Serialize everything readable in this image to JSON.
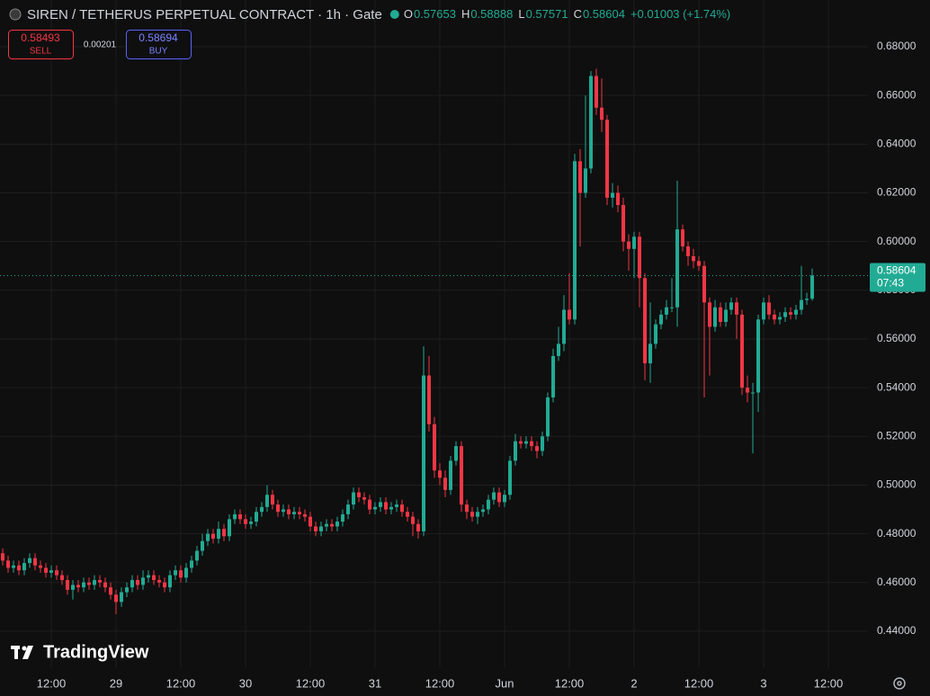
{
  "header": {
    "symbol": "SIREN / TETHERUS PERPETUAL CONTRACT · 1h · Gate",
    "ohlc": [
      {
        "key": "O",
        "value": "0.57653"
      },
      {
        "key": "H",
        "value": "0.58888"
      },
      {
        "key": "L",
        "value": "0.57571"
      },
      {
        "key": "C",
        "value": "0.58604"
      }
    ],
    "change": "+0.01003 (+1.74%)"
  },
  "trade": {
    "sell_price": "0.58493",
    "sell": "SELL",
    "spread": "0.00201",
    "buy_price": "0.58694",
    "buy": "BUY"
  },
  "price_label": {
    "value": "0.58604",
    "countdown": "07:43"
  },
  "brand": "TradingView",
  "chart_data": {
    "type": "candlestick",
    "up_color": "#22ab94",
    "down_color": "#f23645",
    "grid": true,
    "open": [
      0.472,
      0.469,
      0.466,
      0.467,
      0.465,
      0.468,
      0.47,
      0.467,
      0.466,
      0.464,
      0.465,
      0.463,
      0.461,
      0.457,
      0.459,
      0.458,
      0.46,
      0.459,
      0.461,
      0.46,
      0.458,
      0.455,
      0.452,
      0.456,
      0.458,
      0.461,
      0.459,
      0.462,
      0.463,
      0.461,
      0.46,
      0.458,
      0.463,
      0.465,
      0.462,
      0.466,
      0.469,
      0.473,
      0.477,
      0.48,
      0.478,
      0.482,
      0.479,
      0.486,
      0.488,
      0.486,
      0.484,
      0.485,
      0.489,
      0.491,
      0.496,
      0.492,
      0.489,
      0.49,
      0.488,
      0.489,
      0.488,
      0.487,
      0.483,
      0.481,
      0.483,
      0.484,
      0.483,
      0.485,
      0.488,
      0.492,
      0.497,
      0.495,
      0.494,
      0.49,
      0.491,
      0.493,
      0.49,
      0.491,
      0.492,
      0.489,
      0.487,
      0.484,
      0.481,
      0.545,
      0.525,
      0.506,
      0.503,
      0.498,
      0.51,
      0.516,
      0.492,
      0.489,
      0.487,
      0.489,
      0.49,
      0.494,
      0.497,
      0.493,
      0.496,
      0.51,
      0.518,
      0.517,
      0.518,
      0.516,
      0.514,
      0.52,
      0.536,
      0.553,
      0.558,
      0.572,
      0.568,
      0.633,
      0.62,
      0.63,
      0.668,
      0.655,
      0.65,
      0.618,
      0.62,
      0.615,
      0.6,
      0.597,
      0.602,
      0.585,
      0.55,
      0.558,
      0.566,
      0.57,
      0.573,
      0.573,
      0.605,
      0.598,
      0.594,
      0.592,
      0.59,
      0.575,
      0.565,
      0.573,
      0.567,
      0.572,
      0.575,
      0.57,
      0.54,
      0.538,
      0.538,
      0.568,
      0.575,
      0.57,
      0.568,
      0.569,
      0.571,
      0.57,
      0.572,
      0.576,
      0.57653
    ],
    "high": [
      0.474,
      0.471,
      0.469,
      0.469,
      0.47,
      0.472,
      0.472,
      0.469,
      0.468,
      0.467,
      0.467,
      0.465,
      0.463,
      0.461,
      0.461,
      0.462,
      0.462,
      0.463,
      0.463,
      0.462,
      0.46,
      0.457,
      0.458,
      0.46,
      0.463,
      0.463,
      0.465,
      0.465,
      0.465,
      0.463,
      0.462,
      0.465,
      0.467,
      0.467,
      0.468,
      0.471,
      0.475,
      0.48,
      0.482,
      0.482,
      0.485,
      0.484,
      0.488,
      0.49,
      0.49,
      0.488,
      0.487,
      0.491,
      0.493,
      0.5,
      0.498,
      0.494,
      0.492,
      0.492,
      0.491,
      0.491,
      0.49,
      0.489,
      0.485,
      0.485,
      0.486,
      0.486,
      0.487,
      0.49,
      0.494,
      0.499,
      0.499,
      0.497,
      0.496,
      0.493,
      0.495,
      0.495,
      0.493,
      0.494,
      0.494,
      0.491,
      0.489,
      0.486,
      0.557,
      0.553,
      0.528,
      0.509,
      0.506,
      0.512,
      0.518,
      0.518,
      0.494,
      0.491,
      0.491,
      0.492,
      0.496,
      0.499,
      0.499,
      0.498,
      0.512,
      0.521,
      0.52,
      0.52,
      0.52,
      0.518,
      0.522,
      0.538,
      0.556,
      0.565,
      0.578,
      0.587,
      0.636,
      0.638,
      0.66,
      0.67,
      0.671,
      0.667,
      0.652,
      0.624,
      0.623,
      0.618,
      0.603,
      0.604,
      0.604,
      0.587,
      0.575,
      0.568,
      0.572,
      0.576,
      0.585,
      0.625,
      0.607,
      0.6,
      0.597,
      0.594,
      0.592,
      0.577,
      0.576,
      0.575,
      0.575,
      0.577,
      0.577,
      0.572,
      0.545,
      0.542,
      0.57,
      0.577,
      0.578,
      0.572,
      0.571,
      0.573,
      0.573,
      0.574,
      0.59,
      0.579,
      0.58888
    ],
    "low": [
      0.467,
      0.464,
      0.464,
      0.463,
      0.463,
      0.466,
      0.465,
      0.464,
      0.462,
      0.462,
      0.461,
      0.459,
      0.455,
      0.453,
      0.456,
      0.456,
      0.457,
      0.457,
      0.458,
      0.456,
      0.453,
      0.447,
      0.45,
      0.454,
      0.456,
      0.457,
      0.457,
      0.46,
      0.459,
      0.458,
      0.456,
      0.456,
      0.461,
      0.46,
      0.46,
      0.464,
      0.467,
      0.471,
      0.475,
      0.476,
      0.476,
      0.477,
      0.477,
      0.484,
      0.484,
      0.482,
      0.482,
      0.483,
      0.487,
      0.489,
      0.49,
      0.487,
      0.487,
      0.486,
      0.486,
      0.486,
      0.485,
      0.481,
      0.479,
      0.479,
      0.481,
      0.481,
      0.481,
      0.483,
      0.486,
      0.49,
      0.493,
      0.492,
      0.488,
      0.488,
      0.489,
      0.488,
      0.488,
      0.489,
      0.487,
      0.485,
      0.479,
      0.478,
      0.479,
      0.522,
      0.503,
      0.5,
      0.495,
      0.496,
      0.508,
      0.489,
      0.486,
      0.485,
      0.484,
      0.487,
      0.488,
      0.492,
      0.491,
      0.491,
      0.494,
      0.508,
      0.515,
      0.515,
      0.514,
      0.511,
      0.512,
      0.518,
      0.534,
      0.551,
      0.555,
      0.566,
      0.566,
      0.598,
      0.618,
      0.628,
      0.652,
      0.645,
      0.615,
      0.614,
      0.612,
      0.596,
      0.588,
      0.585,
      0.573,
      0.543,
      0.542,
      0.556,
      0.564,
      0.568,
      0.571,
      0.565,
      0.596,
      0.59,
      0.589,
      0.588,
      0.536,
      0.545,
      0.563,
      0.565,
      0.565,
      0.57,
      0.56,
      0.537,
      0.534,
      0.513,
      0.53,
      0.566,
      0.568,
      0.566,
      0.566,
      0.567,
      0.568,
      0.568,
      0.57,
      0.574,
      0.57571
    ],
    "close": [
      0.469,
      0.466,
      0.467,
      0.465,
      0.468,
      0.47,
      0.467,
      0.466,
      0.464,
      0.465,
      0.463,
      0.461,
      0.457,
      0.459,
      0.458,
      0.46,
      0.459,
      0.461,
      0.46,
      0.458,
      0.455,
      0.452,
      0.456,
      0.458,
      0.461,
      0.459,
      0.462,
      0.463,
      0.461,
      0.46,
      0.458,
      0.463,
      0.465,
      0.462,
      0.466,
      0.469,
      0.473,
      0.477,
      0.48,
      0.478,
      0.482,
      0.479,
      0.486,
      0.488,
      0.486,
      0.484,
      0.485,
      0.489,
      0.491,
      0.496,
      0.492,
      0.489,
      0.49,
      0.488,
      0.489,
      0.488,
      0.487,
      0.483,
      0.481,
      0.483,
      0.484,
      0.483,
      0.485,
      0.488,
      0.492,
      0.497,
      0.495,
      0.494,
      0.49,
      0.491,
      0.493,
      0.49,
      0.491,
      0.492,
      0.489,
      0.487,
      0.484,
      0.481,
      0.545,
      0.525,
      0.506,
      0.503,
      0.498,
      0.51,
      0.516,
      0.492,
      0.489,
      0.487,
      0.489,
      0.49,
      0.494,
      0.497,
      0.493,
      0.496,
      0.51,
      0.518,
      0.517,
      0.518,
      0.516,
      0.514,
      0.52,
      0.536,
      0.553,
      0.558,
      0.572,
      0.568,
      0.633,
      0.62,
      0.63,
      0.668,
      0.655,
      0.65,
      0.618,
      0.62,
      0.615,
      0.6,
      0.597,
      0.602,
      0.585,
      0.55,
      0.558,
      0.566,
      0.57,
      0.573,
      0.573,
      0.605,
      0.598,
      0.594,
      0.592,
      0.59,
      0.575,
      0.565,
      0.573,
      0.567,
      0.572,
      0.575,
      0.57,
      0.54,
      0.538,
      0.538,
      0.568,
      0.575,
      0.57,
      0.568,
      0.569,
      0.571,
      0.57,
      0.572,
      0.576,
      0.57653,
      0.58604
    ],
    "xlim": [
      -0.5,
      160.33
    ],
    "xticks": [
      {
        "value": 9,
        "label": "12:00"
      },
      {
        "value": 21,
        "label": "29"
      },
      {
        "value": 33,
        "label": "12:00"
      },
      {
        "value": 45,
        "label": "30"
      },
      {
        "value": 57,
        "label": "12:00"
      },
      {
        "value": 69,
        "label": "31"
      },
      {
        "value": 81,
        "label": "12:00"
      },
      {
        "value": 93,
        "label": "Jun"
      },
      {
        "value": 105,
        "label": "12:00"
      },
      {
        "value": 117,
        "label": "2"
      },
      {
        "value": 129,
        "label": "12:00"
      },
      {
        "value": 141,
        "label": "3"
      },
      {
        "value": 153,
        "label": "12:00"
      }
    ],
    "ylim": [
      0.4252,
      0.6992
    ],
    "yticks": [
      {
        "value": 0.44,
        "label": "0.44000"
      },
      {
        "value": 0.46,
        "label": "0.46000"
      },
      {
        "value": 0.48,
        "label": "0.48000"
      },
      {
        "value": 0.5,
        "label": "0.50000"
      },
      {
        "value": 0.52,
        "label": "0.52000"
      },
      {
        "value": 0.54,
        "label": "0.54000"
      },
      {
        "value": 0.56,
        "label": "0.56000"
      },
      {
        "value": 0.58,
        "label": "0.58000"
      },
      {
        "value": 0.6,
        "label": "0.60000"
      },
      {
        "value": 0.62,
        "label": "0.62000"
      },
      {
        "value": 0.64,
        "label": "0.64000"
      },
      {
        "value": 0.66,
        "label": "0.66000"
      },
      {
        "value": 0.68,
        "label": "0.68000"
      }
    ]
  }
}
